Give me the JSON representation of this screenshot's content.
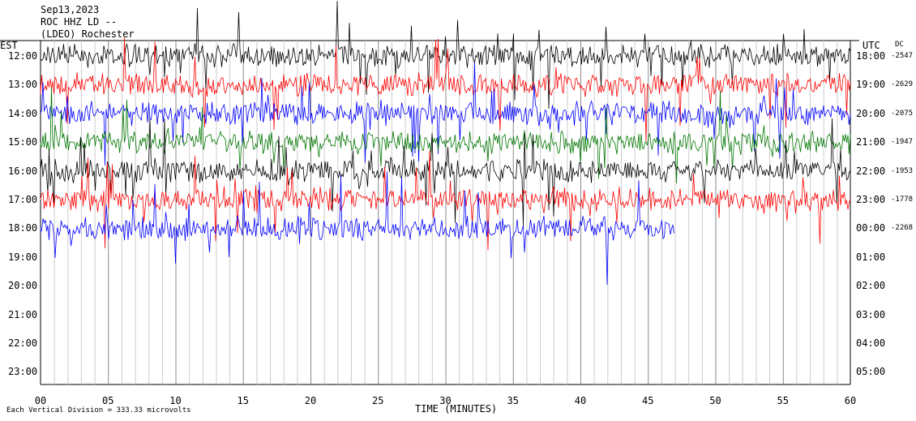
{
  "header": {
    "date": "Sep13,2023",
    "station": "ROC HHZ LD --",
    "location": "(LDEO) Rochester"
  },
  "axes": {
    "left_label": "EST",
    "right_label": "UTC",
    "dc_label": "DC",
    "xlabel": "TIME (MINUTES)",
    "scale_note": "Each Vertical Division =  333.33 microvolts"
  },
  "colors": {
    "cycle": [
      "#000000",
      "#ff0000",
      "#0000ff",
      "#007700"
    ]
  },
  "chart_data": {
    "type": "line",
    "title": "",
    "xlabel": "TIME (MINUTES)",
    "xlim": [
      0,
      60
    ],
    "x_ticks": [
      "00",
      "05",
      "10",
      "15",
      "20",
      "25",
      "30",
      "35",
      "40",
      "45",
      "50",
      "55",
      "60"
    ],
    "est_rows": [
      "12:00",
      "13:00",
      "14:00",
      "15:00",
      "16:00",
      "17:00",
      "18:00",
      "19:00",
      "20:00",
      "21:00",
      "22:00",
      "23:00"
    ],
    "utc_rows": [
      "18:00",
      "19:00",
      "20:00",
      "21:00",
      "22:00",
      "23:00",
      "00:00",
      "01:00",
      "02:00",
      "03:00",
      "04:00",
      "05:00"
    ],
    "dc_values": [
      "-2547",
      "-2629",
      "-2075",
      "-1947",
      "-1953",
      "-1778",
      "-2268"
    ],
    "series": [
      {
        "row": "12:00",
        "color": "#000000",
        "end_minute": 60
      },
      {
        "row": "13:00",
        "color": "#ff0000",
        "end_minute": 60
      },
      {
        "row": "14:00",
        "color": "#0000ff",
        "end_minute": 60
      },
      {
        "row": "15:00",
        "color": "#007700",
        "end_minute": 60
      },
      {
        "row": "16:00",
        "color": "#000000",
        "end_minute": 60
      },
      {
        "row": "17:00",
        "color": "#ff0000",
        "end_minute": 60
      },
      {
        "row": "18:00",
        "color": "#0000ff",
        "end_minute": 47
      }
    ],
    "grid": "vertical-minutes"
  }
}
